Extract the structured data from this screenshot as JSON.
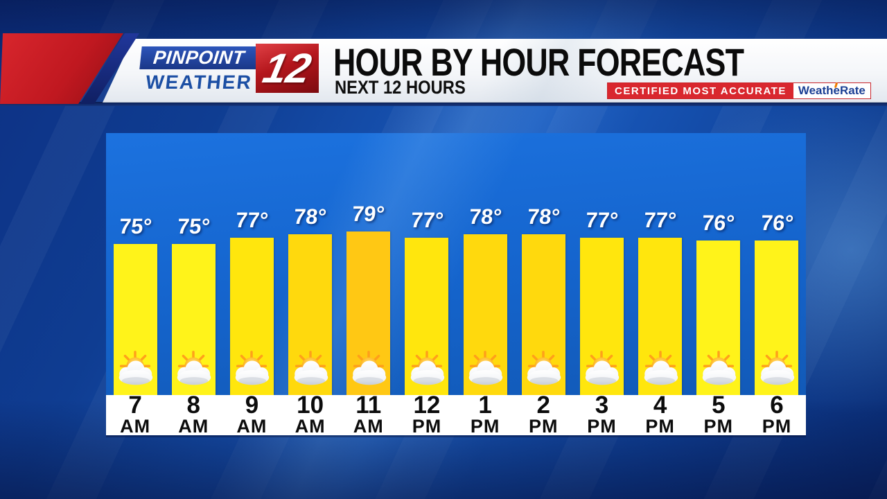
{
  "header": {
    "brand": {
      "line1": "PINPOINT",
      "line2": "WEATHER",
      "channel_number": "12"
    },
    "title": "HOUR BY HOUR FORECAST",
    "subtitle": "NEXT 12 HOURS",
    "badge": {
      "label": "CERTIFIED MOST ACCURATE",
      "brand": "WeatheRate"
    }
  },
  "chart_data": {
    "type": "bar",
    "title": "HOUR BY HOUR FORECAST",
    "subtitle": "NEXT 12 HOURS",
    "unit": "°",
    "unit_full": "°F",
    "grid": false,
    "legend": "none",
    "axis": "none",
    "categories": [
      "7 AM",
      "8 AM",
      "9 AM",
      "10 AM",
      "11 AM",
      "12 PM",
      "1 PM",
      "2 PM",
      "3 PM",
      "4 PM",
      "5 PM",
      "6 PM"
    ],
    "values": [
      75,
      75,
      77,
      78,
      79,
      77,
      78,
      78,
      77,
      77,
      76,
      76
    ],
    "hours": [
      {
        "hour": "7",
        "period": "AM",
        "temp": 75,
        "temp_label": "75°",
        "icon": "partly-cloudy",
        "bar_color": "#FFF31A"
      },
      {
        "hour": "8",
        "period": "AM",
        "temp": 75,
        "temp_label": "75°",
        "icon": "partly-cloudy",
        "bar_color": "#FFF31A"
      },
      {
        "hour": "9",
        "period": "AM",
        "temp": 77,
        "temp_label": "77°",
        "icon": "partly-cloudy",
        "bar_color": "#FFE60D"
      },
      {
        "hour": "10",
        "period": "AM",
        "temp": 78,
        "temp_label": "78°",
        "icon": "partly-cloudy",
        "bar_color": "#FFD90D"
      },
      {
        "hour": "11",
        "period": "AM",
        "temp": 79,
        "temp_label": "79°",
        "icon": "partly-cloudy",
        "bar_color": "#FFC814"
      },
      {
        "hour": "12",
        "period": "PM",
        "temp": 77,
        "temp_label": "77°",
        "icon": "partly-cloudy",
        "bar_color": "#FFE60D"
      },
      {
        "hour": "1",
        "period": "PM",
        "temp": 78,
        "temp_label": "78°",
        "icon": "partly-cloudy",
        "bar_color": "#FFD90D"
      },
      {
        "hour": "2",
        "period": "PM",
        "temp": 78,
        "temp_label": "78°",
        "icon": "partly-cloudy",
        "bar_color": "#FFD90D"
      },
      {
        "hour": "3",
        "period": "PM",
        "temp": 77,
        "temp_label": "77°",
        "icon": "partly-cloudy",
        "bar_color": "#FFE60D"
      },
      {
        "hour": "4",
        "period": "PM",
        "temp": 77,
        "temp_label": "77°",
        "icon": "partly-cloudy",
        "bar_color": "#FFE60D"
      },
      {
        "hour": "5",
        "period": "PM",
        "temp": 76,
        "temp_label": "76°",
        "icon": "partly-cloudy",
        "bar_color": "#FFF31A"
      },
      {
        "hour": "6",
        "period": "PM",
        "temp": 76,
        "temp_label": "76°",
        "icon": "partly-cloudy",
        "bar_color": "#FFF31A"
      }
    ]
  },
  "colors": {
    "background_blue": "#12439C",
    "panel_blue": "#1565CE",
    "bar_yellow": "#FFF31A",
    "bar_gold": "#FFC814",
    "banner_red": "#C01820",
    "badge_red": "#D9272E",
    "logo_blue": "#1C3E97",
    "temp_text": "#FFFFFF",
    "time_text": "#0C0C0C"
  }
}
